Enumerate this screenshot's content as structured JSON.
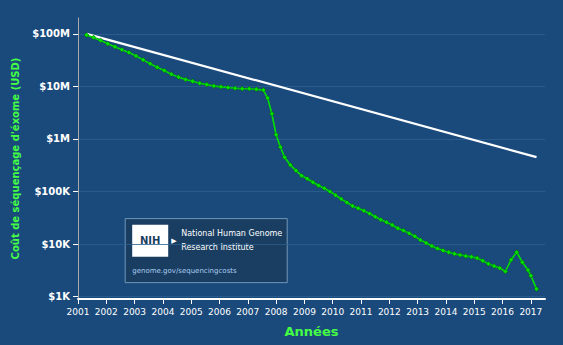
{
  "chart_data": {
    "type": "line",
    "xlabel": "Années",
    "ylabel": "Coût de séquençage d'éxome (USD)",
    "log": "y",
    "grid": "y",
    "xlim": [
      2001.0,
      2017.5
    ],
    "xticks": [
      2001,
      2002,
      2003,
      2004,
      2005,
      2006,
      2007,
      2008,
      2009,
      2010,
      2011,
      2012,
      2013,
      2014,
      2015,
      2016,
      2017
    ],
    "ylim": [
      900,
      200000000
    ],
    "yticks": [
      {
        "value": 1000,
        "label": "$1K"
      },
      {
        "value": 10000,
        "label": "$10K"
      },
      {
        "value": 100000,
        "label": "$100K"
      },
      {
        "value": 1000000,
        "label": "$1M"
      },
      {
        "value": 10000000,
        "label": "$10M"
      },
      {
        "value": 100000000,
        "label": "$100M"
      }
    ],
    "series": [
      {
        "color": "#ffffff",
        "marker": "none",
        "x": [
          2001.3,
          2017.2
        ],
        "values": [
          100000000,
          450000
        ]
      },
      {
        "color": "#00e000",
        "marker": "diamond",
        "x": [
          2001.3,
          2001.55,
          2001.8,
          2002.05,
          2002.3,
          2002.55,
          2002.8,
          2003.05,
          2003.3,
          2003.55,
          2003.8,
          2004.05,
          2004.3,
          2004.55,
          2004.8,
          2005.05,
          2005.3,
          2005.55,
          2005.8,
          2006.05,
          2006.3,
          2006.55,
          2006.8,
          2007.05,
          2007.3,
          2007.55,
          2007.7,
          2007.85,
          2008.0,
          2008.15,
          2008.3,
          2008.5,
          2008.7,
          2008.9,
          2009.1,
          2009.3,
          2009.5,
          2009.7,
          2009.9,
          2010.1,
          2010.3,
          2010.5,
          2010.7,
          2010.9,
          2011.1,
          2011.3,
          2011.5,
          2011.7,
          2011.9,
          2012.1,
          2012.3,
          2012.5,
          2012.7,
          2012.9,
          2013.1,
          2013.3,
          2013.5,
          2013.7,
          2013.9,
          2014.1,
          2014.3,
          2014.5,
          2014.7,
          2014.9,
          2015.1,
          2015.3,
          2015.5,
          2015.7,
          2015.9,
          2016.1,
          2016.3,
          2016.5,
          2016.7,
          2016.9,
          2017.0,
          2017.2
        ],
        "values": [
          95000000,
          85000000,
          75000000,
          65000000,
          57000000,
          50000000,
          44000000,
          38000000,
          32000000,
          27000000,
          23000000,
          20000000,
          17000000,
          15000000,
          13500000,
          12500000,
          11500000,
          10800000,
          10200000,
          9800000,
          9500000,
          9200000,
          9000000,
          9000000,
          8800000,
          8500000,
          6000000,
          3000000,
          1200000,
          700000,
          450000,
          320000,
          250000,
          200000,
          175000,
          150000,
          130000,
          115000,
          100000,
          85000,
          72000,
          62000,
          53000,
          48000,
          43000,
          38000,
          33000,
          29000,
          26000,
          23000,
          20000,
          18000,
          16000,
          14000,
          12000,
          10500,
          9200,
          8200,
          7500,
          7000,
          6500,
          6200,
          5900,
          5700,
          5400,
          4800,
          4200,
          3800,
          3500,
          3000,
          5000,
          7000,
          4500,
          3200,
          2500,
          1400
        ]
      }
    ],
    "annotations": [
      "NIH",
      "▶",
      "National Human Genome",
      "Research Institute",
      "genome.gov/sequencingcosts"
    ]
  }
}
